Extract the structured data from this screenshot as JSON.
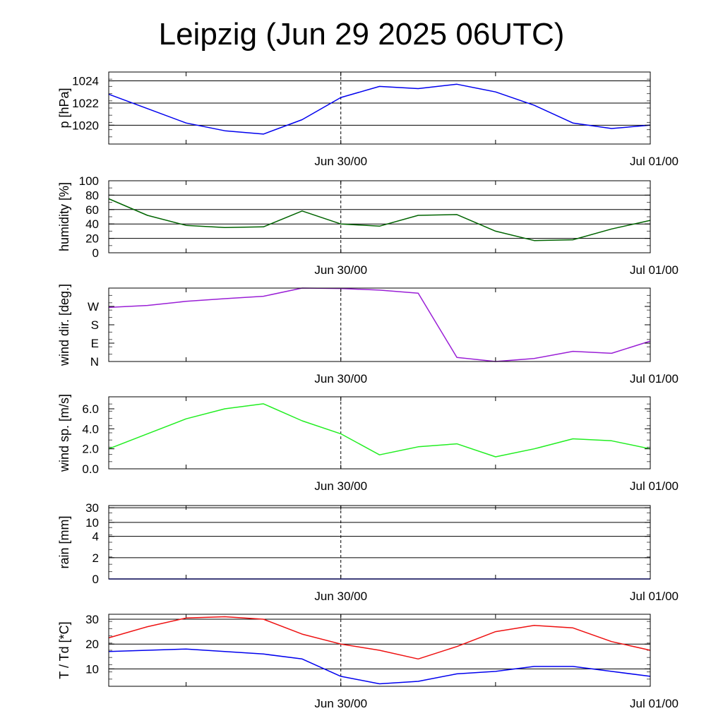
{
  "title": "Leipzig (Jun 29 2025 06UTC)",
  "colors": {
    "pressure": "#0000ee",
    "humidity": "#006400",
    "wind_dir": "#9a1fd6",
    "wind_speed": "#22ee22",
    "rain": "#0000ee",
    "temperature": "#ee1111",
    "dewpoint": "#0000ee"
  },
  "chart_data": [
    {
      "type": "line",
      "ylabel": "p [hPa]",
      "x_ticks": [
        "Jun 30/00",
        "Jul 01/00"
      ],
      "x_hours": [
        0,
        3,
        6,
        9,
        12,
        15,
        18,
        21,
        24,
        27,
        30,
        33,
        36,
        39,
        42
      ],
      "ylim": [
        1018.3,
        1024.8
      ],
      "yticks": [
        "1020",
        "1022",
        "1024"
      ],
      "ytick_values": [
        1020,
        1022,
        1024
      ],
      "grid": true,
      "series": [
        {
          "color_key": "pressure",
          "values": [
            1022.8,
            1021.5,
            1020.2,
            1019.5,
            1019.2,
            1020.5,
            1022.5,
            1023.5,
            1023.3,
            1023.7,
            1023.0,
            1021.8,
            1020.2,
            1019.7,
            1020.0
          ]
        }
      ]
    },
    {
      "type": "line",
      "ylabel": "humidity [%]",
      "x_ticks": [
        "Jun 30/00",
        "Jul 01/00"
      ],
      "x_hours": [
        0,
        3,
        6,
        9,
        12,
        15,
        18,
        21,
        24,
        27,
        30,
        33,
        36,
        39,
        42
      ],
      "ylim": [
        0,
        100
      ],
      "yticks": [
        "0",
        "20",
        "40",
        "60",
        "80",
        "100"
      ],
      "ytick_values": [
        0,
        20,
        40,
        60,
        80,
        100
      ],
      "grid": true,
      "series": [
        {
          "color_key": "humidity",
          "values": [
            75,
            52,
            38,
            35,
            36,
            58,
            40,
            37,
            52,
            53,
            30,
            17,
            18,
            33,
            45
          ]
        }
      ]
    },
    {
      "type": "line",
      "ylabel": "wind dir. [deg.]",
      "x_ticks": [
        "Jun 30/00",
        "Jul 01/00"
      ],
      "x_hours": [
        0,
        3,
        6,
        9,
        12,
        15,
        18,
        21,
        24,
        27,
        30,
        33,
        36,
        39,
        42
      ],
      "ylim": [
        0,
        360
      ],
      "yticks": [
        "N",
        "E",
        "S",
        "W"
      ],
      "ytick_values": [
        0,
        90,
        180,
        270
      ],
      "grid": false,
      "series": [
        {
          "color_key": "wind_dir",
          "values": [
            265,
            275,
            295,
            308,
            320,
            360,
            358,
            350,
            335,
            20,
            0,
            15,
            50,
            40,
            100
          ]
        }
      ]
    },
    {
      "type": "line",
      "ylabel": "wind sp. [m/s]",
      "x_ticks": [
        "Jun 30/00",
        "Jul 01/00"
      ],
      "x_hours": [
        0,
        3,
        6,
        9,
        12,
        15,
        18,
        21,
        24,
        27,
        30,
        33,
        36,
        39,
        42
      ],
      "ylim": [
        0,
        7.2
      ],
      "yticks": [
        "0.0",
        "2.0",
        "4.0",
        "6.0"
      ],
      "ytick_values": [
        0,
        2,
        4,
        6
      ],
      "grid": false,
      "series": [
        {
          "color_key": "wind_speed",
          "values": [
            2.0,
            3.5,
            5.0,
            6.0,
            6.5,
            4.8,
            3.5,
            1.4,
            2.2,
            2.5,
            1.2,
            2.0,
            3.0,
            2.8,
            2.0
          ]
        }
      ]
    },
    {
      "type": "line",
      "ylabel": "rain [mm]",
      "x_ticks": [
        "Jun 30/00",
        "Jul 01/00"
      ],
      "x_hours": [
        0,
        42
      ],
      "ylim": [
        0,
        31
      ],
      "yticks": [
        "0",
        "2",
        "4",
        "10",
        "30"
      ],
      "ytick_values": [
        0,
        2,
        4,
        10,
        30
      ],
      "grid": true,
      "series": [
        {
          "color_key": "rain",
          "values": [
            0,
            0
          ]
        }
      ]
    },
    {
      "type": "line",
      "ylabel": "T / Td [*C]",
      "x_ticks": [
        "Jun 30/00",
        "Jul 01/00"
      ],
      "x_hours": [
        0,
        3,
        6,
        9,
        12,
        15,
        18,
        21,
        24,
        27,
        30,
        33,
        36,
        39,
        42
      ],
      "ylim": [
        3,
        32
      ],
      "yticks": [
        "10",
        "20",
        "30"
      ],
      "ytick_values": [
        10,
        20,
        30
      ],
      "grid": true,
      "series": [
        {
          "color_key": "temperature",
          "values": [
            22.5,
            27,
            30.5,
            31,
            30,
            24,
            20,
            17.5,
            14,
            19,
            25,
            27.5,
            26.5,
            21,
            17.5
          ]
        },
        {
          "color_key": "dewpoint",
          "values": [
            17,
            17.5,
            18,
            17,
            16,
            14,
            7,
            4,
            5,
            8,
            9,
            11,
            11,
            9,
            7
          ]
        }
      ]
    }
  ]
}
